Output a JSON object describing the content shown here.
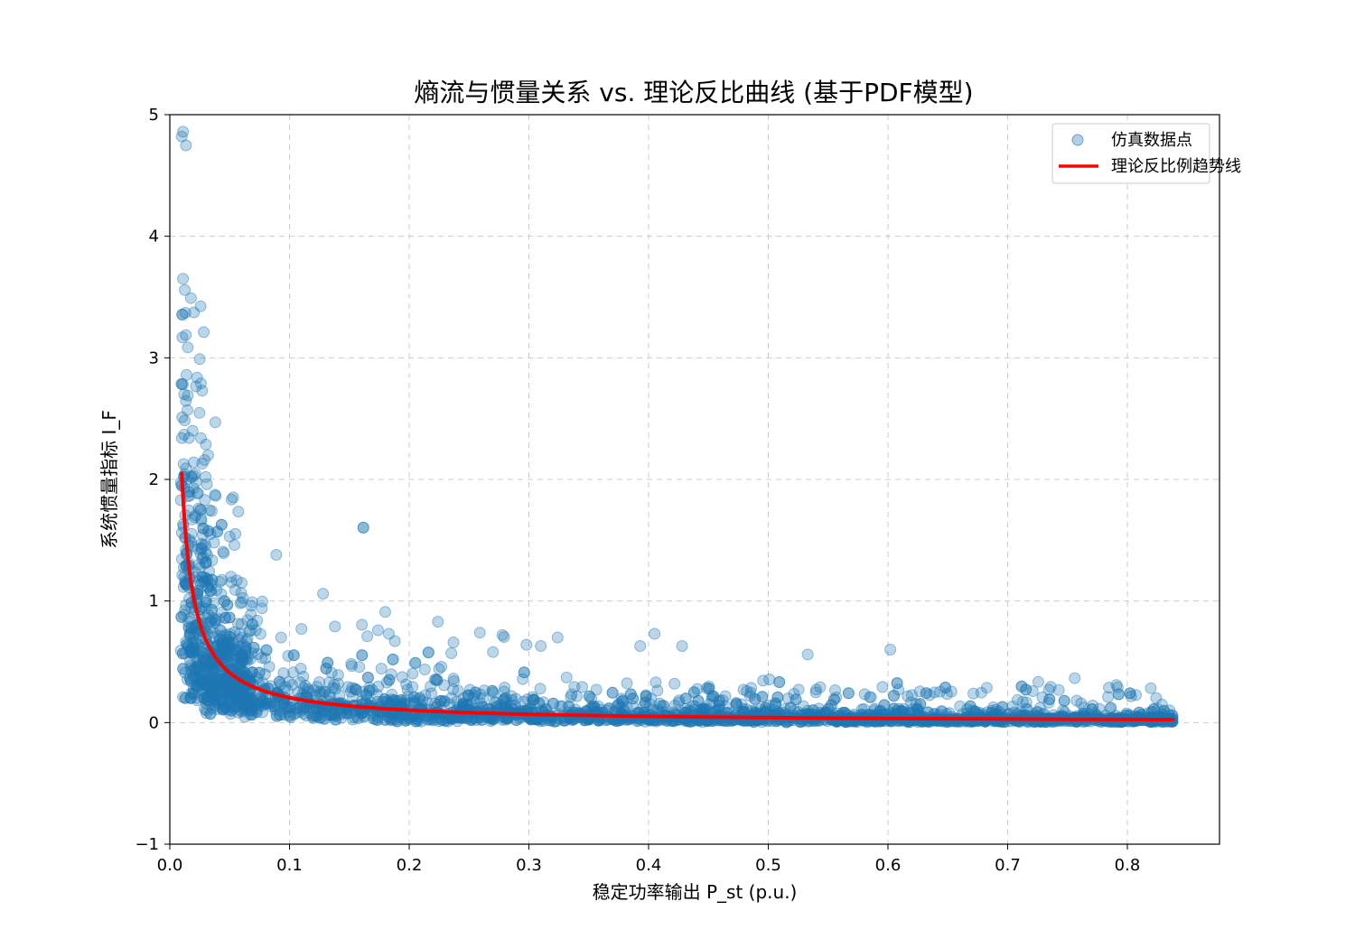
{
  "chart_data": {
    "type": "scatter",
    "title": "熵流与惯量关系 vs. 理论反比曲线 (基于PDF模型)",
    "xlabel": "稳定功率输出 P_st (p.u.)",
    "ylabel": "系统惯量指标 I_F",
    "xlim": [
      0.0,
      0.877
    ],
    "ylim": [
      -1,
      5
    ],
    "xticks": [
      0.0,
      0.1,
      0.2,
      0.3,
      0.4,
      0.5,
      0.6,
      0.7,
      0.8
    ],
    "xtick_labels": [
      "0.0",
      "0.1",
      "0.2",
      "0.3",
      "0.4",
      "0.5",
      "0.6",
      "0.7",
      "0.8"
    ],
    "yticks": [
      -1,
      0,
      1,
      2,
      3,
      4,
      5
    ],
    "ytick_labels": [
      "−1",
      "0",
      "1",
      "2",
      "3",
      "4",
      "5"
    ],
    "grid": true,
    "legend_position": "top-right",
    "colors": {
      "scatter": "#1f77b4",
      "curve": "#ff0000",
      "grid": "#cccccc"
    },
    "series": [
      {
        "name": "仿真数据点",
        "type": "scatter",
        "approx_count": 3000,
        "x_range": [
          0.009,
          0.838
        ],
        "note_trend": "I_F ≈ 0.02 / P_st with multiplicative noise",
        "highlight_points": [
          {
            "x": 0.011,
            "y": 4.86
          },
          {
            "x": 0.01,
            "y": 4.82
          },
          {
            "x": 0.011,
            "y": 3.65
          },
          {
            "x": 0.013,
            "y": 3.37
          },
          {
            "x": 0.025,
            "y": 2.99
          },
          {
            "x": 0.014,
            "y": 2.86
          },
          {
            "x": 0.026,
            "y": 2.79
          },
          {
            "x": 0.027,
            "y": 2.73
          },
          {
            "x": 0.012,
            "y": 2.7
          },
          {
            "x": 0.015,
            "y": 2.69
          },
          {
            "x": 0.038,
            "y": 2.47
          },
          {
            "x": 0.019,
            "y": 2.4
          },
          {
            "x": 0.016,
            "y": 2.34
          },
          {
            "x": 0.01,
            "y": 2.34
          },
          {
            "x": 0.026,
            "y": 2.34
          },
          {
            "x": 0.032,
            "y": 2.2
          },
          {
            "x": 0.029,
            "y": 2.16
          },
          {
            "x": 0.02,
            "y": 2.14
          },
          {
            "x": 0.027,
            "y": 2.13
          },
          {
            "x": 0.03,
            "y": 2.02
          },
          {
            "x": 0.02,
            "y": 2.03
          },
          {
            "x": 0.031,
            "y": 1.96
          },
          {
            "x": 0.022,
            "y": 1.98
          },
          {
            "x": 0.015,
            "y": 1.86
          },
          {
            "x": 0.024,
            "y": 1.76
          },
          {
            "x": 0.035,
            "y": 1.74
          },
          {
            "x": 0.026,
            "y": 1.75
          },
          {
            "x": 0.011,
            "y": 1.63
          },
          {
            "x": 0.034,
            "y": 1.55
          },
          {
            "x": 0.05,
            "y": 1.53
          },
          {
            "x": 0.037,
            "y": 1.48
          },
          {
            "x": 0.054,
            "y": 1.46
          },
          {
            "x": 0.03,
            "y": 1.4
          },
          {
            "x": 0.089,
            "y": 1.38
          },
          {
            "x": 0.028,
            "y": 1.36
          },
          {
            "x": 0.012,
            "y": 1.2
          },
          {
            "x": 0.051,
            "y": 1.2
          },
          {
            "x": 0.056,
            "y": 1.17
          },
          {
            "x": 0.06,
            "y": 1.15
          },
          {
            "x": 0.039,
            "y": 1.09
          },
          {
            "x": 0.128,
            "y": 1.06
          },
          {
            "x": 0.06,
            "y": 0.99
          },
          {
            "x": 0.069,
            "y": 0.99
          },
          {
            "x": 0.18,
            "y": 0.91
          },
          {
            "x": 0.077,
            "y": 0.94
          },
          {
            "x": 0.224,
            "y": 0.83
          },
          {
            "x": 0.073,
            "y": 0.84
          },
          {
            "x": 0.138,
            "y": 0.79
          },
          {
            "x": 0.11,
            "y": 0.77
          },
          {
            "x": 0.174,
            "y": 0.76
          },
          {
            "x": 0.183,
            "y": 0.73
          },
          {
            "x": 0.259,
            "y": 0.74
          },
          {
            "x": 0.405,
            "y": 0.73
          },
          {
            "x": 0.278,
            "y": 0.72
          },
          {
            "x": 0.324,
            "y": 0.7
          },
          {
            "x": 0.165,
            "y": 0.71
          },
          {
            "x": 0.093,
            "y": 0.7
          },
          {
            "x": 0.06,
            "y": 0.7
          },
          {
            "x": 0.188,
            "y": 0.67
          },
          {
            "x": 0.237,
            "y": 0.66
          },
          {
            "x": 0.298,
            "y": 0.64
          },
          {
            "x": 0.393,
            "y": 0.63
          },
          {
            "x": 0.428,
            "y": 0.63
          },
          {
            "x": 0.31,
            "y": 0.63
          },
          {
            "x": 0.602,
            "y": 0.6
          },
          {
            "x": 0.02,
            "y": 0.59
          },
          {
            "x": 0.27,
            "y": 0.58
          },
          {
            "x": 0.533,
            "y": 0.56
          },
          {
            "x": 0.011,
            "y": 0.21
          },
          {
            "x": 0.038,
            "y": 0.14
          },
          {
            "x": 0.059,
            "y": 0.15
          },
          {
            "x": 0.045,
            "y": 0.17
          }
        ]
      },
      {
        "name": "理论反比例趋势线",
        "type": "line",
        "function": "I_F = 0.0205 / P_st",
        "x": [
          0.01,
          0.012,
          0.015,
          0.02,
          0.025,
          0.03,
          0.04,
          0.05,
          0.07,
          0.1,
          0.15,
          0.2,
          0.3,
          0.4,
          0.5,
          0.6,
          0.7,
          0.838
        ],
        "y": [
          2.05,
          1.71,
          1.37,
          1.03,
          0.82,
          0.68,
          0.51,
          0.41,
          0.29,
          0.205,
          0.137,
          0.103,
          0.068,
          0.051,
          0.041,
          0.034,
          0.029,
          0.024
        ]
      }
    ]
  }
}
